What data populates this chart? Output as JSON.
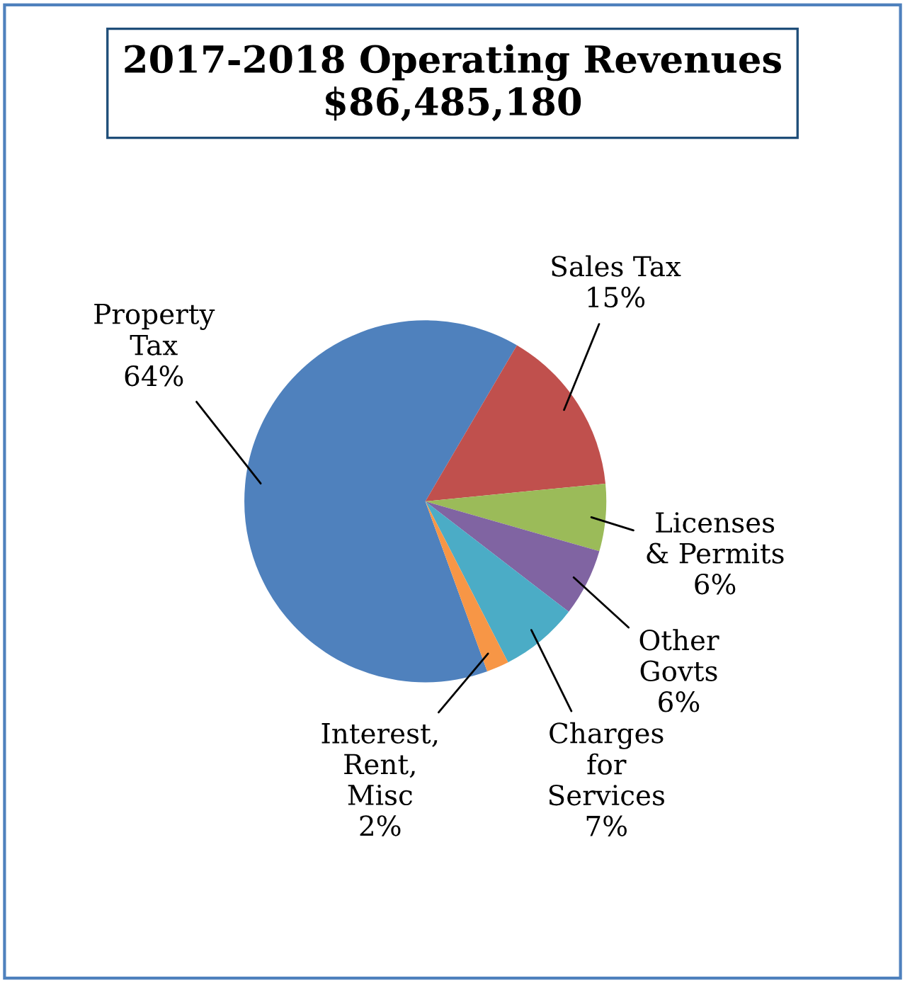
{
  "chart_data": {
    "type": "pie",
    "title": "2017-2018 Operating Revenues",
    "subtitle": "$86,485,180",
    "categories": [
      "Property Tax",
      "Sales Tax",
      "Licenses & Permits",
      "Other Govts",
      "Charges for Services",
      "Interest, Rent, Misc"
    ],
    "values": [
      64,
      15,
      6,
      6,
      7,
      2
    ],
    "colors": [
      "#4f81bd",
      "#c0504d",
      "#9bbb59",
      "#8064a2",
      "#4bacc6",
      "#f79646"
    ],
    "value_labels": [
      "64%",
      "15%",
      "6%",
      "6%",
      "7%",
      "2%"
    ],
    "legend": false
  }
}
